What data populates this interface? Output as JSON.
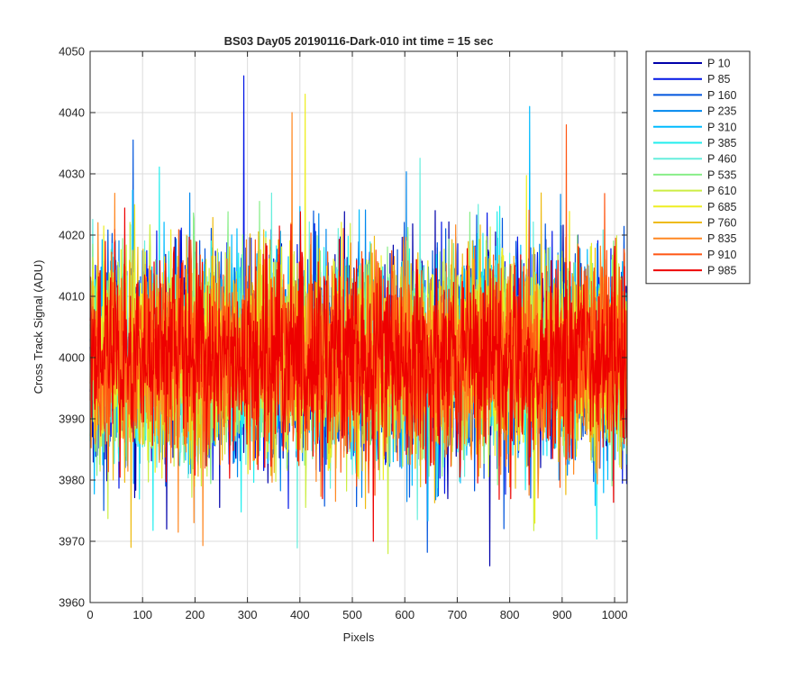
{
  "chart_data": {
    "type": "line",
    "title": "BS03 Day05 20190116-Dark-010 int time = 15 sec",
    "xlabel": "Pixels",
    "ylabel": "Cross Track Signal (ADU)",
    "xlim": [
      0,
      1024
    ],
    "ylim": [
      3960,
      4050
    ],
    "xticks": [
      0,
      100,
      200,
      300,
      400,
      500,
      600,
      700,
      800,
      900,
      1000
    ],
    "yticks": [
      3960,
      3970,
      3980,
      3990,
      4000,
      4010,
      4020,
      4030,
      4040,
      4050
    ],
    "grid": true,
    "legend_position": "outside-top-right",
    "noise": {
      "mean": 4000,
      "sigma": 8,
      "points_per_series": 1024
    },
    "series": [
      {
        "name": "P 10",
        "color": "#0000aa"
      },
      {
        "name": "P 85",
        "color": "#0015e6"
      },
      {
        "name": "P 160",
        "color": "#0055dd"
      },
      {
        "name": "P 235",
        "color": "#0088ee"
      },
      {
        "name": "P 310",
        "color": "#00bbff"
      },
      {
        "name": "P 385",
        "color": "#22eeee"
      },
      {
        "name": "P 460",
        "color": "#66eedd"
      },
      {
        "name": "P 535",
        "color": "#88ee88"
      },
      {
        "name": "P 610",
        "color": "#ccee44"
      },
      {
        "name": "P 685",
        "color": "#eeee22"
      },
      {
        "name": "P 760",
        "color": "#eebb11"
      },
      {
        "name": "P 835",
        "color": "#ff8822"
      },
      {
        "name": "P 910",
        "color": "#ff5511"
      },
      {
        "name": "P 985",
        "color": "#ee0000"
      }
    ],
    "notable_peaks": [
      {
        "series": "P 85",
        "x": 293,
        "y": 4046
      },
      {
        "series": "P 685",
        "x": 410,
        "y": 4043
      },
      {
        "series": "P 310",
        "x": 838,
        "y": 4041
      },
      {
        "series": "P 835",
        "x": 385,
        "y": 4040
      },
      {
        "series": "P 910",
        "x": 908,
        "y": 4038
      },
      {
        "series": "P 10",
        "x": 762,
        "y": 3966
      },
      {
        "series": "P 760",
        "x": 78,
        "y": 3969
      },
      {
        "series": "P 985",
        "x": 540,
        "y": 3970
      }
    ]
  }
}
